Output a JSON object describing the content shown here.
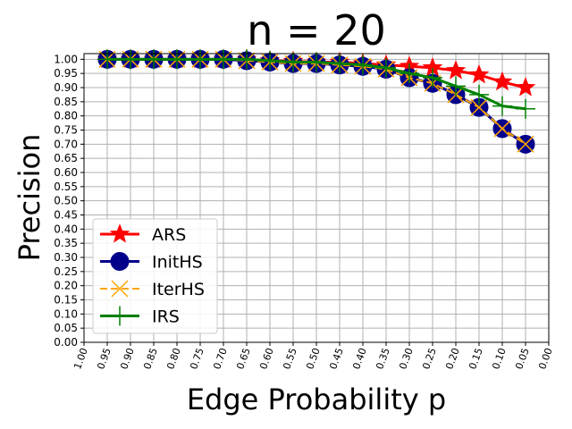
{
  "chart_data": {
    "type": "line",
    "title": "n = 20",
    "xlabel": "Edge Probability p",
    "ylabel": "Precision",
    "xlim": [
      1.0,
      0.0
    ],
    "ylim": [
      0.0,
      1.02
    ],
    "grid": true,
    "legend_position": "lower-left",
    "x_ticks": [
      "1.00",
      "0.95",
      "0.90",
      "0.85",
      "0.80",
      "0.75",
      "0.70",
      "0.65",
      "0.60",
      "0.55",
      "0.50",
      "0.45",
      "0.40",
      "0.35",
      "0.30",
      "0.25",
      "0.20",
      "0.15",
      "0.10",
      "0.05",
      "0.00"
    ],
    "y_ticks": [
      "0.00",
      "0.05",
      "0.10",
      "0.15",
      "0.20",
      "0.25",
      "0.30",
      "0.35",
      "0.40",
      "0.45",
      "0.50",
      "0.55",
      "0.60",
      "0.65",
      "0.70",
      "0.75",
      "0.80",
      "0.85",
      "0.90",
      "0.95",
      "1.00"
    ],
    "x": [
      0.95,
      0.9,
      0.85,
      0.8,
      0.75,
      0.7,
      0.65,
      0.6,
      0.55,
      0.5,
      0.45,
      0.4,
      0.35,
      0.3,
      0.25,
      0.2,
      0.15,
      0.1,
      0.05
    ],
    "series": [
      {
        "name": "ARS",
        "color": "#ff0000",
        "marker": "star",
        "dash": "solid",
        "values": [
          1.0,
          1.0,
          1.0,
          1.0,
          1.0,
          1.0,
          1.0,
          0.995,
          0.993,
          0.99,
          0.99,
          0.985,
          0.98,
          0.975,
          0.97,
          0.96,
          0.945,
          0.92,
          0.9
        ]
      },
      {
        "name": "InitHS",
        "color": "#00008b",
        "marker": "circle",
        "dash": "solid",
        "values": [
          1.0,
          1.0,
          1.0,
          1.0,
          1.0,
          1.0,
          0.995,
          0.99,
          0.985,
          0.985,
          0.98,
          0.975,
          0.965,
          0.935,
          0.915,
          0.875,
          0.83,
          0.755,
          0.7
        ]
      },
      {
        "name": "IterHS",
        "color": "#ffa500",
        "marker": "x",
        "dash": "dashed",
        "values": [
          1.0,
          1.0,
          1.0,
          1.0,
          1.0,
          1.0,
          0.995,
          0.99,
          0.985,
          0.985,
          0.98,
          0.975,
          0.965,
          0.935,
          0.915,
          0.875,
          0.83,
          0.755,
          0.7
        ]
      },
      {
        "name": "IRS",
        "color": "#008000",
        "marker": "plus",
        "dash": "solid",
        "values": [
          1.0,
          1.0,
          1.0,
          1.0,
          1.0,
          1.0,
          1.0,
          0.995,
          0.99,
          0.99,
          0.985,
          0.98,
          0.97,
          0.95,
          0.935,
          0.905,
          0.875,
          0.835,
          0.825
        ]
      }
    ]
  }
}
